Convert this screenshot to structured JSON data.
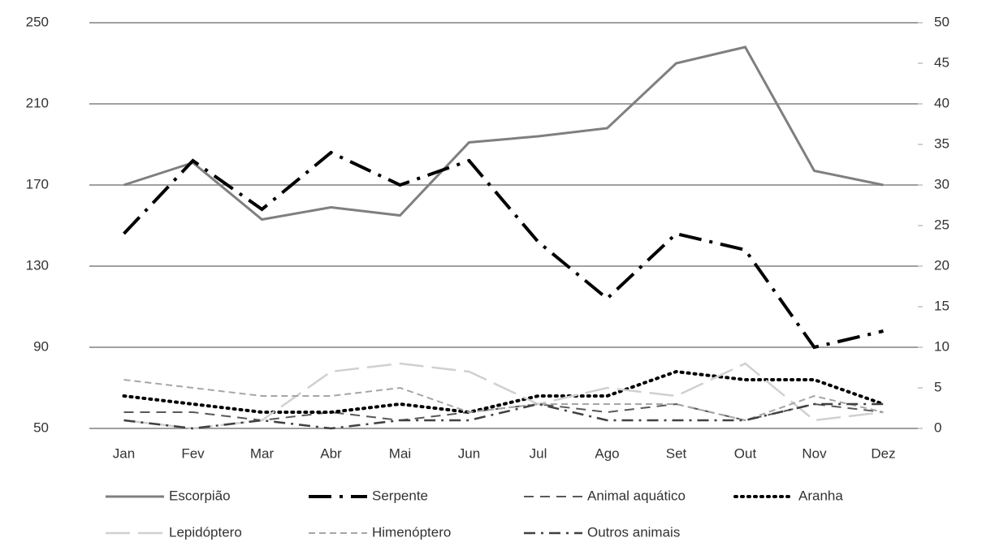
{
  "chart_data": {
    "type": "line",
    "categories": [
      "Jan",
      "Fev",
      "Mar",
      "Abr",
      "Mai",
      "Jun",
      "Jul",
      "Ago",
      "Set",
      "Out",
      "Nov",
      "Dez"
    ],
    "ylim": [
      50,
      250
    ],
    "yticks": [
      50,
      90,
      130,
      170,
      210,
      250
    ],
    "y2lim": [
      0,
      50
    ],
    "y2ticks": [
      0,
      5,
      10,
      15,
      20,
      25,
      30,
      35,
      40,
      45,
      50
    ],
    "grid": true,
    "series": [
      {
        "name": "Escorpião",
        "color": "#7f7f7f",
        "values": [
          170,
          181,
          153,
          159,
          155,
          191,
          194,
          198,
          230,
          238,
          177,
          170
        ]
      },
      {
        "name": "Serpente",
        "color": "#000000",
        "axis": "y2",
        "values": [
          24,
          33,
          27,
          34,
          30,
          33,
          23,
          16,
          24,
          22,
          10,
          12
        ]
      },
      {
        "name": "Animal aquático",
        "color": "#595959",
        "axis": "y2",
        "values": [
          2,
          2,
          1,
          2,
          1,
          2,
          3,
          2,
          3,
          1,
          3,
          2
        ]
      },
      {
        "name": "Aranha",
        "color": "#000000",
        "axis": "y2",
        "values": [
          4,
          3,
          2,
          2,
          3,
          2,
          4,
          4,
          7,
          6,
          6,
          3
        ]
      },
      {
        "name": "Lepidóptero",
        "color": "#d0d0d0",
        "axis": "y2",
        "values": [
          1,
          0,
          1,
          7,
          8,
          7,
          3,
          5,
          4,
          8,
          1,
          2
        ]
      },
      {
        "name": "Himenóptero",
        "color": "#a6a6a6",
        "axis": "y2",
        "values": [
          6,
          5,
          4,
          4,
          5,
          2,
          3,
          3,
          3,
          1,
          4,
          2
        ]
      },
      {
        "name": "Outros animais",
        "color": "#404040",
        "axis": "y2",
        "values": [
          1,
          0,
          1,
          0,
          1,
          1,
          3,
          1,
          1,
          1,
          3,
          3
        ]
      }
    ]
  }
}
